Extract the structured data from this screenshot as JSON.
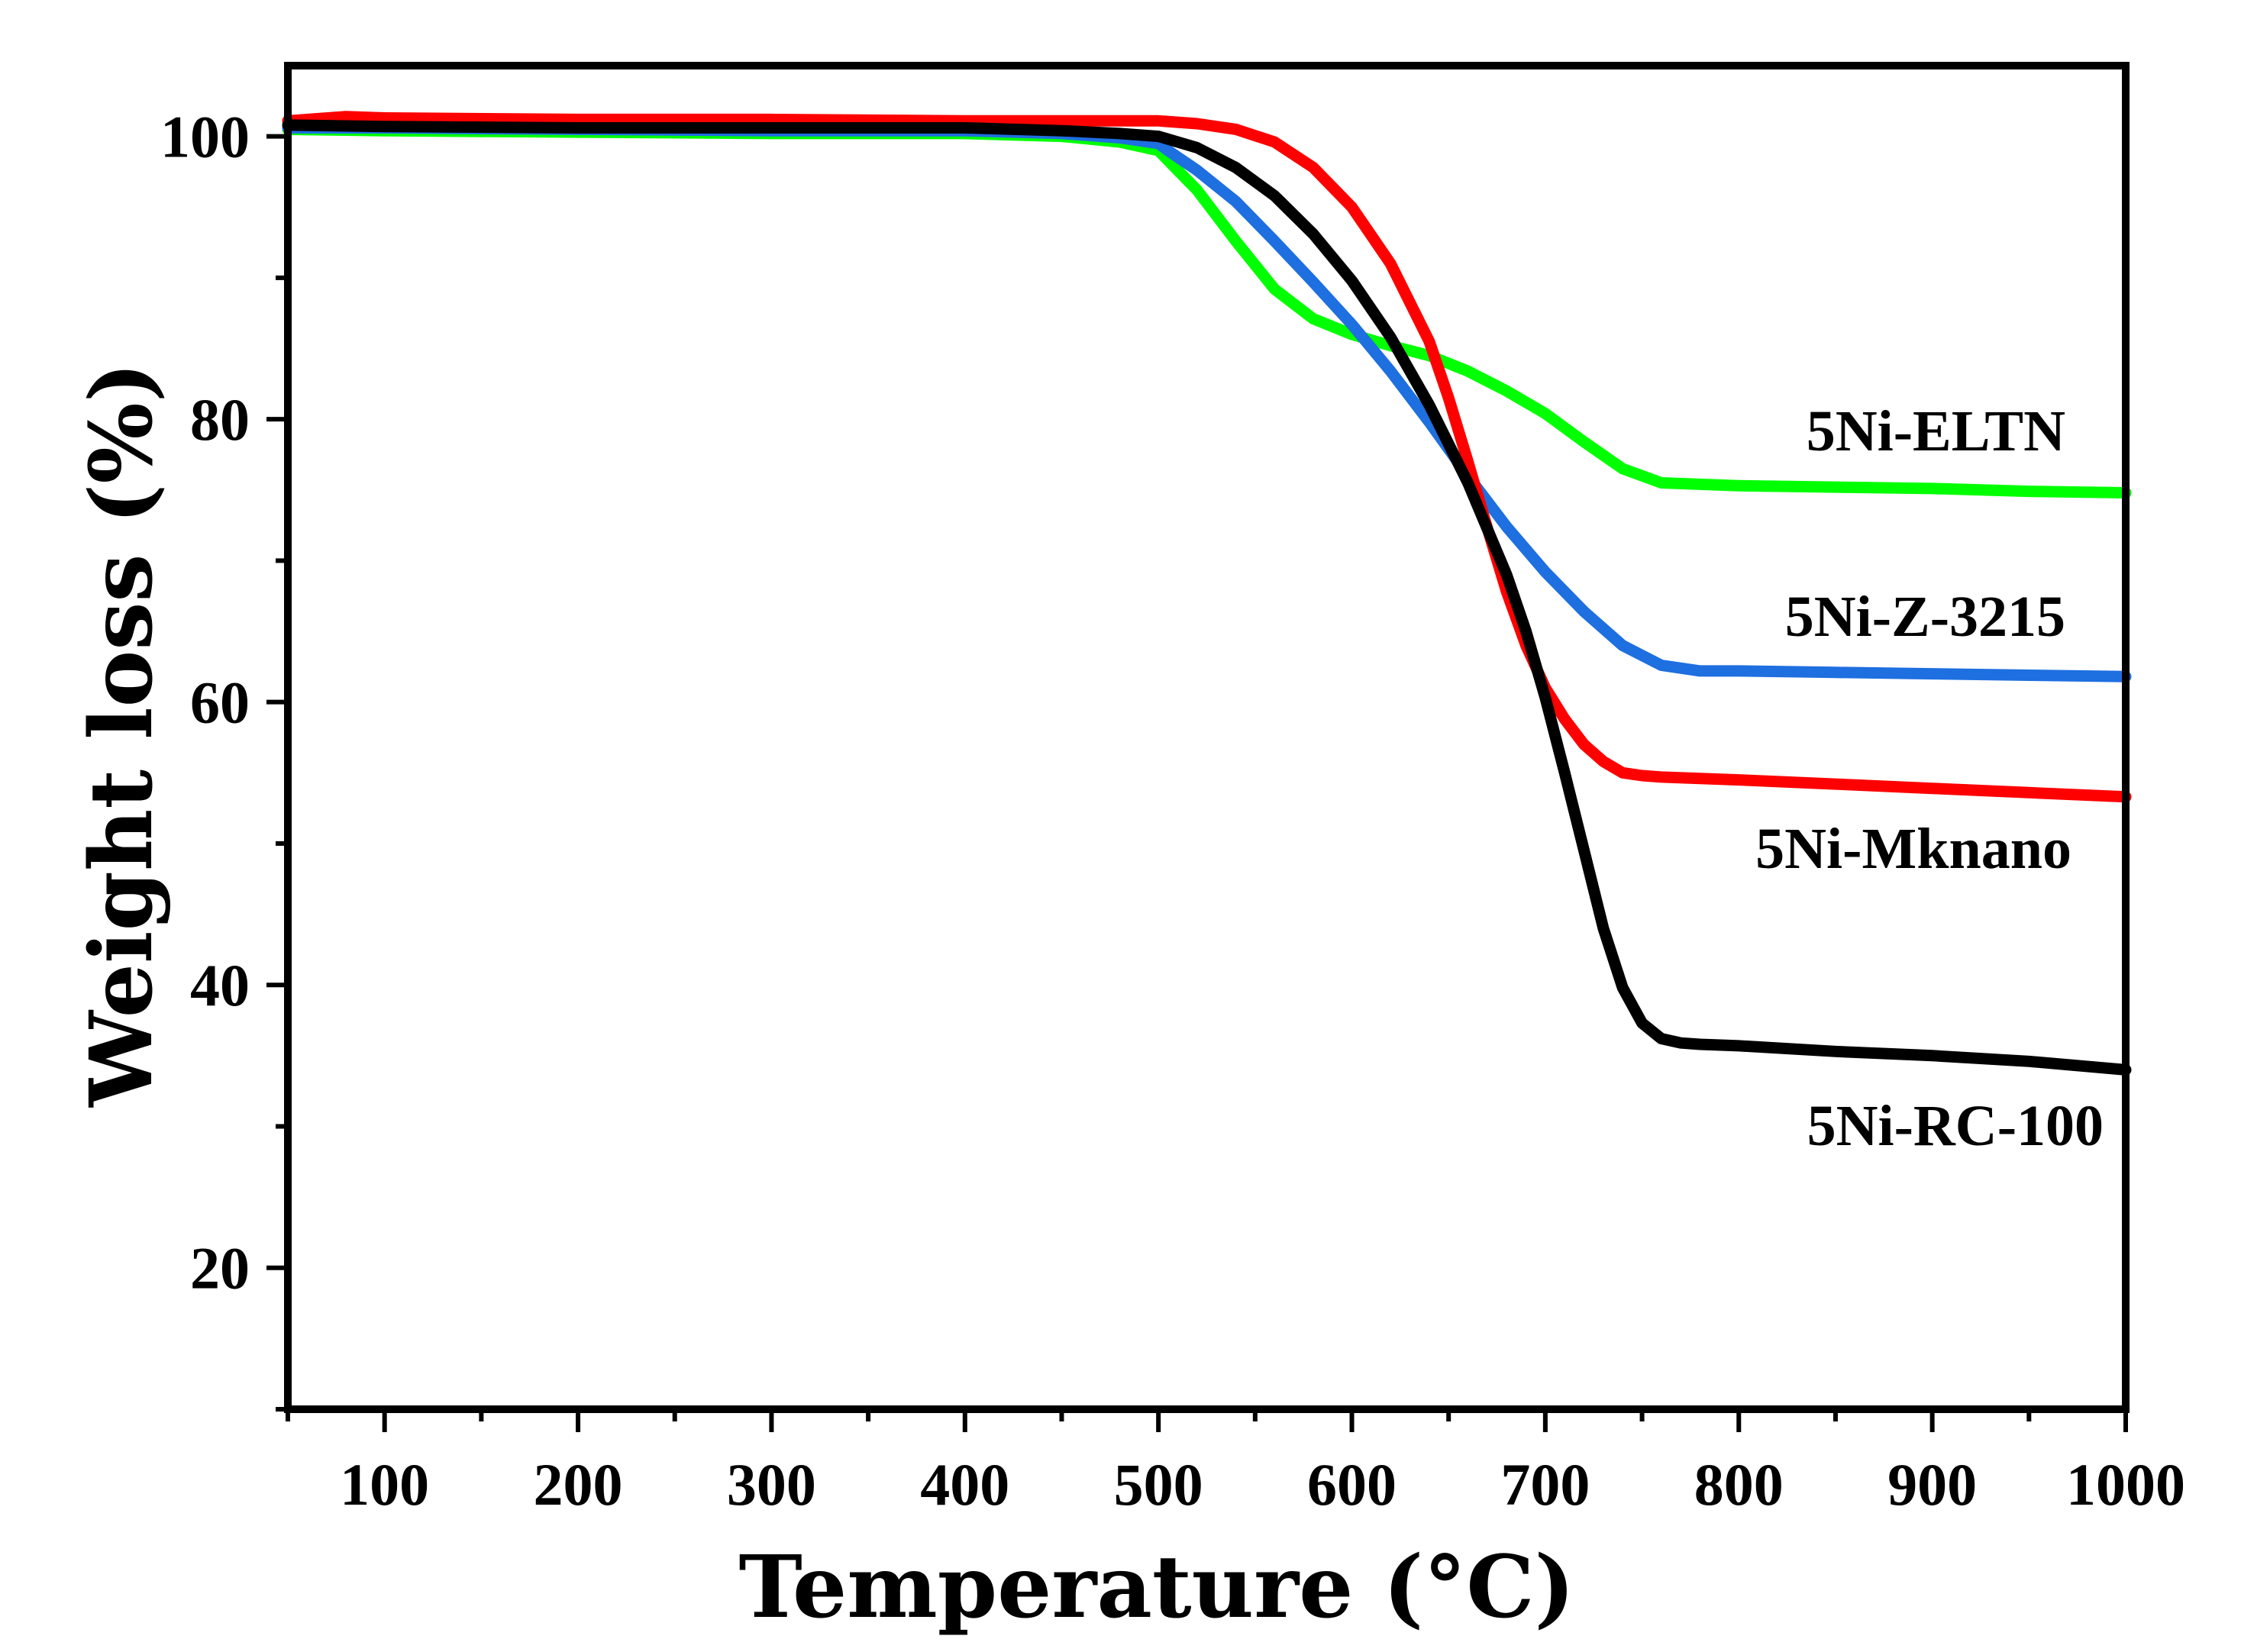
{
  "chart_data": {
    "type": "line",
    "title": "",
    "xlabel": "Temperature (°C)",
    "ylabel": "Weight loss (%)",
    "xlim": [
      50,
      1000
    ],
    "ylim": [
      10,
      105
    ],
    "xticks": [
      100,
      200,
      300,
      400,
      500,
      600,
      700,
      800,
      900,
      1000
    ],
    "xtick_labels": [
      "100",
      "200",
      "300",
      "400",
      "500",
      "600",
      "700",
      "800",
      "900",
      "1000"
    ],
    "yticks": [
      20,
      40,
      60,
      80,
      100
    ],
    "ytick_labels": [
      "20",
      "40",
      "60",
      "80",
      "100"
    ],
    "grid": false,
    "legend": "none",
    "series": [
      {
        "name": "5Ni-ELTN",
        "color": "#00ff00",
        "x": [
          50,
          100,
          200,
          300,
          400,
          450,
          480,
          500,
          505,
          520,
          540,
          560,
          580,
          600,
          620,
          640,
          660,
          680,
          700,
          720,
          740,
          760,
          780,
          800,
          850,
          900,
          950,
          1000
        ],
        "y": [
          100.5,
          100.4,
          100.3,
          100.2,
          100.2,
          100.0,
          99.6,
          99.0,
          98.3,
          96.2,
          92.6,
          89.2,
          87.1,
          86.0,
          85.2,
          84.5,
          83.4,
          82.0,
          80.4,
          78.4,
          76.5,
          75.5,
          75.4,
          75.3,
          75.2,
          75.1,
          74.9,
          74.8
        ]
      },
      {
        "name": "5Ni-Z-3215",
        "color": "#1e6fe0",
        "x": [
          50,
          100,
          200,
          300,
          400,
          450,
          480,
          500,
          505,
          520,
          540,
          560,
          580,
          600,
          620,
          640,
          660,
          680,
          700,
          720,
          740,
          760,
          780,
          800,
          850,
          900,
          950,
          1000
        ],
        "y": [
          100.6,
          100.6,
          100.5,
          100.4,
          100.4,
          100.2,
          99.9,
          99.5,
          99.0,
          97.6,
          95.4,
          92.6,
          89.7,
          86.7,
          83.4,
          79.8,
          76.0,
          72.4,
          69.2,
          66.4,
          64.0,
          62.6,
          62.2,
          62.2,
          62.1,
          62.0,
          61.9,
          61.8
        ]
      },
      {
        "name": "5Ni-Mknano",
        "color": "#ff0000",
        "x": [
          50,
          80,
          100,
          200,
          300,
          400,
          500,
          520,
          540,
          560,
          580,
          600,
          620,
          640,
          650,
          660,
          670,
          680,
          690,
          700,
          710,
          720,
          730,
          740,
          750,
          760,
          780,
          800,
          850,
          900,
          950,
          1000
        ],
        "y": [
          101.1,
          101.4,
          101.3,
          101.2,
          101.2,
          101.1,
          101.1,
          100.9,
          100.5,
          99.6,
          97.8,
          95.0,
          91.0,
          85.5,
          81.5,
          77.0,
          72.3,
          67.8,
          64.0,
          61.0,
          58.8,
          57.0,
          55.8,
          55.0,
          54.8,
          54.7,
          54.6,
          54.5,
          54.2,
          53.9,
          53.6,
          53.3
        ]
      },
      {
        "name": "5Ni-RC-100",
        "color": "#000000",
        "x": [
          50,
          100,
          200,
          300,
          400,
          450,
          480,
          500,
          520,
          540,
          560,
          580,
          600,
          620,
          640,
          660,
          680,
          690,
          700,
          710,
          720,
          730,
          740,
          750,
          760,
          770,
          780,
          800,
          850,
          900,
          950,
          1000
        ],
        "y": [
          100.8,
          100.7,
          100.6,
          100.6,
          100.6,
          100.4,
          100.2,
          100.0,
          99.2,
          97.8,
          95.8,
          93.1,
          89.8,
          85.8,
          81.0,
          75.5,
          69.0,
          65.0,
          60.3,
          55.0,
          49.5,
          44.0,
          39.8,
          37.3,
          36.2,
          35.9,
          35.8,
          35.7,
          35.3,
          35.0,
          34.6,
          34.0
        ]
      }
    ]
  }
}
